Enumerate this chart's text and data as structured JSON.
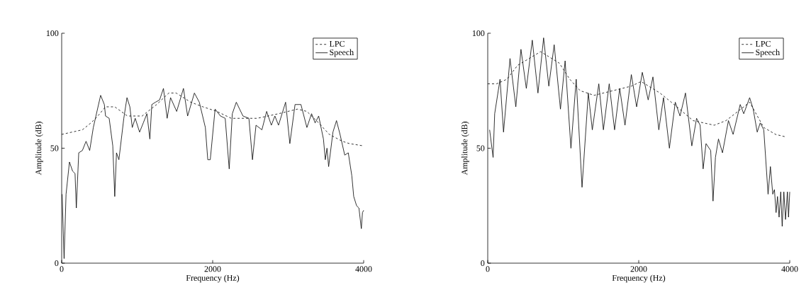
{
  "chart_data": [
    {
      "type": "line",
      "xlabel": "Frequency (Hz)",
      "ylabel": "Amplitude (dB)",
      "xlim": [
        0,
        4000
      ],
      "ylim": [
        0,
        100
      ],
      "xticks": [
        0,
        2000,
        4000
      ],
      "yticks": [
        0,
        50,
        100
      ],
      "legend": "top right",
      "grid": false,
      "series": [
        {
          "name": "LPC",
          "color": "#000000",
          "line_style": "dashed",
          "x": [
            0,
            274,
            387,
            452,
            581,
            703,
            871,
            1065,
            1258,
            1419,
            1516,
            1710,
            1871,
            2056,
            2245,
            2589,
            2872,
            3122,
            3248,
            3404,
            3545,
            3718,
            3812,
            4000
          ],
          "values": [
            56,
            58,
            61,
            63,
            68,
            68,
            64,
            64,
            69,
            74,
            74,
            70,
            68,
            66,
            63,
            63,
            65,
            67,
            66,
            61,
            56,
            53,
            52,
            51
          ]
        },
        {
          "name": "Speech",
          "color": "#000000",
          "line_style": "solid",
          "x": [
            6,
            32,
            58,
            103,
            145,
            177,
            194,
            226,
            274,
            323,
            371,
            419,
            516,
            565,
            581,
            629,
            677,
            703,
            726,
            758,
            823,
            865,
            903,
            935,
            974,
            1032,
            1081,
            1129,
            1168,
            1194,
            1242,
            1297,
            1348,
            1397,
            1442,
            1523,
            1613,
            1668,
            1758,
            1823,
            1903,
            1935,
            1968,
            2032,
            2103,
            2166,
            2219,
            2260,
            2313,
            2401,
            2480,
            2527,
            2574,
            2652,
            2715,
            2777,
            2824,
            2872,
            2966,
            3022,
            3091,
            3169,
            3248,
            3310,
            3357,
            3404,
            3467,
            3492,
            3514,
            3536,
            3593,
            3640,
            3687,
            3749,
            3796,
            3843,
            3868,
            3906,
            3937,
            3969,
            3984,
            4000
          ],
          "values": [
            30,
            2,
            30,
            44,
            40,
            39,
            24,
            48,
            49,
            53,
            49,
            59,
            73,
            69,
            64,
            63,
            51,
            29,
            48,
            45,
            63,
            72,
            68,
            59,
            63,
            57,
            61,
            65,
            54,
            69,
            70,
            71,
            76,
            63,
            72,
            66,
            76,
            64,
            74,
            70,
            59,
            45,
            45,
            67,
            64,
            63,
            41,
            65,
            70,
            64,
            63,
            45,
            60,
            58,
            66,
            60,
            64,
            60,
            70,
            52,
            69,
            69,
            59,
            65,
            61,
            64,
            54,
            45,
            50,
            42,
            57,
            62,
            56,
            47,
            48,
            38,
            29,
            25,
            24,
            15,
            22,
            23
          ]
        }
      ]
    },
    {
      "type": "line",
      "xlabel": "Frequency (Hz)",
      "ylabel": "Amplitude (dB)",
      "xlim": [
        0,
        4000
      ],
      "ylim": [
        0,
        100
      ],
      "xticks": [
        0,
        2000,
        4000
      ],
      "yticks": [
        0,
        50,
        100
      ],
      "legend": "top right",
      "grid": false,
      "series": [
        {
          "name": "LPC",
          "color": "#000000",
          "line_style": "dashed",
          "x": [
            0,
            117,
            255,
            394,
            548,
            700,
            948,
            1086,
            1225,
            1409,
            1655,
            1902,
            2031,
            2281,
            2469,
            2719,
            3000,
            3156,
            3313,
            3469,
            3656,
            3813,
            3938
          ],
          "values": [
            78,
            78,
            80,
            86,
            89,
            92,
            87,
            80,
            75,
            73,
            75,
            77,
            79,
            74,
            69,
            62,
            60,
            62,
            66,
            70,
            59,
            56,
            55
          ]
        },
        {
          "name": "Speech",
          "color": "#000000",
          "line_style": "solid",
          "x": [
            25,
            71,
            92,
            163,
            209,
            295,
            372,
            440,
            511,
            590,
            665,
            740,
            809,
            880,
            963,
            1025,
            1102,
            1172,
            1249,
            1332,
            1385,
            1471,
            1532,
            1609,
            1680,
            1748,
            1818,
            1902,
            1972,
            2047,
            2125,
            2188,
            2266,
            2328,
            2406,
            2484,
            2547,
            2619,
            2703,
            2766,
            2813,
            2853,
            2891,
            2953,
            2984,
            3016,
            3056,
            3109,
            3188,
            3250,
            3344,
            3391,
            3469,
            3516,
            3569,
            3609,
            3656,
            3713,
            3744,
            3775,
            3797,
            3819,
            3838,
            3859,
            3881,
            3900,
            3922,
            3944,
            3969,
            3984,
            4000
          ],
          "values": [
            58,
            46,
            65,
            80,
            57,
            89,
            68,
            93,
            76,
            97,
            74,
            98,
            77,
            95,
            67,
            88,
            50,
            80,
            33,
            74,
            58,
            78,
            58,
            78,
            58,
            76,
            60,
            82,
            68,
            83,
            71,
            81,
            58,
            72,
            50,
            70,
            64,
            74,
            51,
            63,
            60,
            41,
            52,
            49,
            27,
            46,
            54,
            48,
            62,
            56,
            69,
            65,
            72,
            67,
            57,
            61,
            58,
            30,
            42,
            30,
            32,
            22,
            29,
            20,
            31,
            16,
            31,
            19,
            31,
            20,
            31
          ]
        }
      ]
    }
  ]
}
